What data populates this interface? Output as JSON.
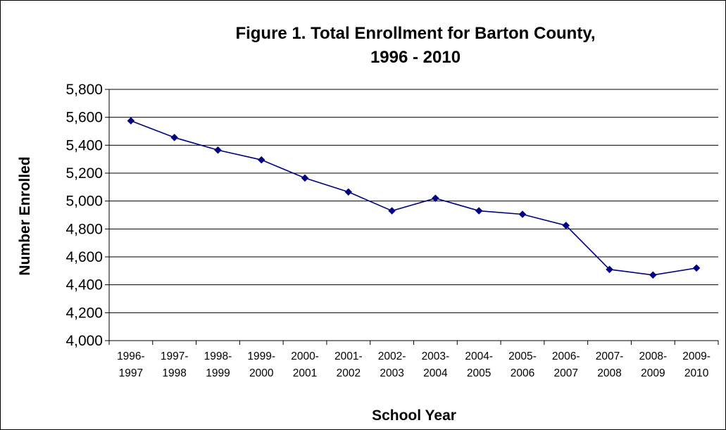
{
  "chart_data": {
    "type": "line",
    "title_lines": [
      "Figure 1. Total Enrollment for Barton County,",
      "1996 - 2010"
    ],
    "xlabel": "School Year",
    "ylabel": "Number Enrolled",
    "categories": [
      [
        "1996-",
        "1997"
      ],
      [
        "1997-",
        "1998"
      ],
      [
        "1998-",
        "1999"
      ],
      [
        "1999-",
        "2000"
      ],
      [
        "2000-",
        "2001"
      ],
      [
        "2001-",
        "2002"
      ],
      [
        "2002-",
        "2003"
      ],
      [
        "2003-",
        "2004"
      ],
      [
        "2004-",
        "2005"
      ],
      [
        "2005-",
        "2006"
      ],
      [
        "2006-",
        "2007"
      ],
      [
        "2007-",
        "2008"
      ],
      [
        "2008-",
        "2009"
      ],
      [
        "2009-",
        "2010"
      ]
    ],
    "values": [
      5575,
      5455,
      5365,
      5295,
      5165,
      5065,
      4930,
      5020,
      4930,
      4905,
      4825,
      4510,
      4470,
      4520
    ],
    "ylim": [
      4000,
      5800
    ],
    "yticks": [
      4000,
      4200,
      4400,
      4600,
      4800,
      5000,
      5200,
      5400,
      5600,
      5800
    ],
    "ytick_labels": [
      "4,000",
      "4,200",
      "4,400",
      "4,600",
      "4,800",
      "5,000",
      "5,200",
      "5,400",
      "5,600",
      "5,800"
    ],
    "grid": true,
    "legend": "none",
    "series_color": "#000080"
  }
}
